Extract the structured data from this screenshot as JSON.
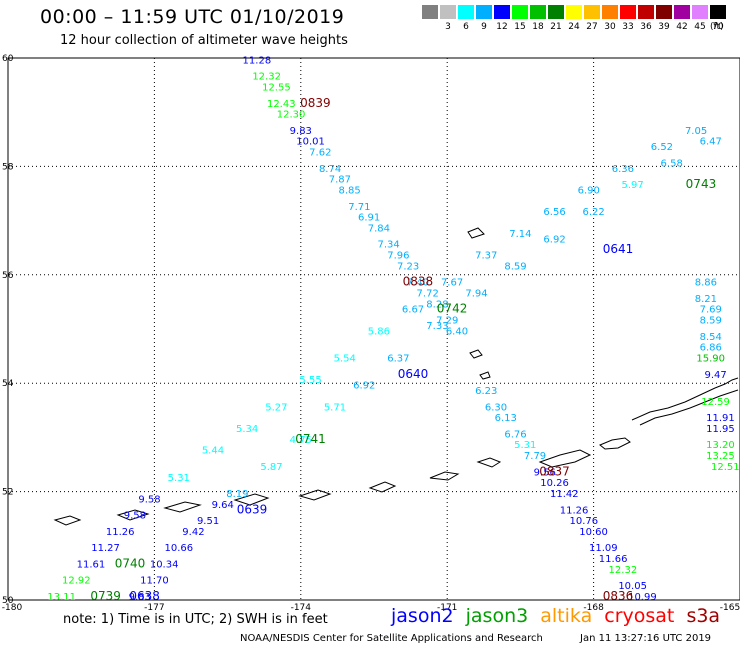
{
  "header": {
    "title": "00:00 – 11:59 UTC 01/10/2019",
    "subtitle": "12 hour collection of altimeter wave heights"
  },
  "color_scale": {
    "swatches": [
      {
        "label": "",
        "color": "#808080"
      },
      {
        "label": "3",
        "color": "#c0c0c0"
      },
      {
        "label": "6",
        "color": "#00ffff"
      },
      {
        "label": "9",
        "color": "#00b0ff"
      },
      {
        "label": "12",
        "color": "#0000ff"
      },
      {
        "label": "15",
        "color": "#00ff00"
      },
      {
        "label": "18",
        "color": "#00c000"
      },
      {
        "label": "21",
        "color": "#008000"
      },
      {
        "label": "24",
        "color": "#ffff00"
      },
      {
        "label": "27",
        "color": "#ffc000"
      },
      {
        "label": "30",
        "color": "#ff8000"
      },
      {
        "label": "33",
        "color": "#ff0000"
      },
      {
        "label": "36",
        "color": "#c00000"
      },
      {
        "label": "39",
        "color": "#800000"
      },
      {
        "label": "42",
        "color": "#a000a0"
      },
      {
        "label": "45",
        "color": "#e080ff"
      },
      {
        "label": "70",
        "color": "#000000"
      }
    ],
    "unit": "(ft)"
  },
  "map": {
    "lon_range": [
      -180,
      -165
    ],
    "lat_range": [
      50,
      60
    ],
    "lon_ticks": [
      "-180",
      "-177",
      "-174",
      "-171",
      "-168",
      "-165"
    ],
    "lat_ticks": [
      "60",
      "58",
      "56",
      "54",
      "52",
      "50"
    ],
    "lon_tick_values": [
      -180,
      -177,
      -174,
      -171,
      -168,
      -165
    ],
    "lat_tick_values": [
      60,
      58,
      56,
      54,
      52,
      50
    ]
  },
  "pass_labels": [
    {
      "text": "0839",
      "lon": -173.7,
      "lat": 59.1,
      "color": "#800000"
    },
    {
      "text": "0838",
      "lon": -171.6,
      "lat": 55.8,
      "color": "#800000"
    },
    {
      "text": "0837",
      "lon": -168.8,
      "lat": 52.3,
      "color": "#800000"
    },
    {
      "text": "0836",
      "lon": -167.5,
      "lat": 50.0,
      "color": "#800000"
    },
    {
      "text": "0743",
      "lon": -165.8,
      "lat": 57.6,
      "color": "#008000"
    },
    {
      "text": "0742",
      "lon": -170.9,
      "lat": 55.3,
      "color": "#008000"
    },
    {
      "text": "0741",
      "lon": -173.8,
      "lat": 52.9,
      "color": "#008000"
    },
    {
      "text": "0740",
      "lon": -177.5,
      "lat": 50.6,
      "color": "#008000"
    },
    {
      "text": "0739",
      "lon": -178.0,
      "lat": 50.0,
      "color": "#008000"
    },
    {
      "text": "0641",
      "lon": -167.5,
      "lat": 56.4,
      "color": "#0000ff"
    },
    {
      "text": "0640",
      "lon": -171.7,
      "lat": 54.1,
      "color": "#0000ff"
    },
    {
      "text": "0639",
      "lon": -175.0,
      "lat": 51.6,
      "color": "#0000ff"
    },
    {
      "text": "0638",
      "lon": -177.2,
      "lat": 50.0,
      "color": "#0000ff"
    }
  ],
  "tracks": [
    {
      "id": "track-0839-0837",
      "points": [
        {
          "v": "11.28",
          "lon": -174.9,
          "lat": 59.9,
          "color": "#0000ff"
        },
        {
          "v": "12.32",
          "lon": -174.7,
          "lat": 59.6,
          "color": "#00ff00"
        },
        {
          "v": "12.55",
          "lon": -174.5,
          "lat": 59.4,
          "color": "#00ff00"
        },
        {
          "v": "12.43",
          "lon": -174.4,
          "lat": 59.1,
          "color": "#00ff00"
        },
        {
          "v": "12.30",
          "lon": -174.2,
          "lat": 58.9,
          "color": "#00ff00"
        },
        {
          "v": "9.83",
          "lon": -174.0,
          "lat": 58.6,
          "color": "#0000ff"
        },
        {
          "v": "10.01",
          "lon": -173.8,
          "lat": 58.4,
          "color": "#0000ff"
        },
        {
          "v": "7.62",
          "lon": -173.6,
          "lat": 58.2,
          "color": "#00b0ff"
        },
        {
          "v": "8.74",
          "lon": -173.4,
          "lat": 57.9,
          "color": "#00b0ff"
        },
        {
          "v": "7.87",
          "lon": -173.2,
          "lat": 57.7,
          "color": "#00b0ff"
        },
        {
          "v": "8.85",
          "lon": -173.0,
          "lat": 57.5,
          "color": "#00b0ff"
        },
        {
          "v": "7.71",
          "lon": -172.8,
          "lat": 57.2,
          "color": "#00b0ff"
        },
        {
          "v": "6.91",
          "lon": -172.6,
          "lat": 57.0,
          "color": "#00b0ff"
        },
        {
          "v": "7.84",
          "lon": -172.4,
          "lat": 56.8,
          "color": "#00b0ff"
        },
        {
          "v": "7.34",
          "lon": -172.2,
          "lat": 56.5,
          "color": "#00b0ff"
        },
        {
          "v": "7.96",
          "lon": -172.0,
          "lat": 56.3,
          "color": "#00b0ff"
        },
        {
          "v": "7.23",
          "lon": -171.8,
          "lat": 56.1,
          "color": "#00b0ff"
        },
        {
          "v": "7.40",
          "lon": -171.6,
          "lat": 55.8,
          "color": "#00b0ff"
        },
        {
          "v": "7.72",
          "lon": -171.4,
          "lat": 55.6,
          "color": "#00b0ff"
        },
        {
          "v": "8.28",
          "lon": -171.2,
          "lat": 55.4,
          "color": "#00b0ff"
        },
        {
          "v": "7.29",
          "lon": -171.0,
          "lat": 55.1,
          "color": "#00b0ff"
        },
        {
          "v": "6.40",
          "lon": -170.8,
          "lat": 54.9,
          "color": "#00b0ff"
        },
        {
          "v": "6.23",
          "lon": -170.2,
          "lat": 53.8,
          "color": "#00b0ff"
        },
        {
          "v": "6.30",
          "lon": -170.0,
          "lat": 53.5,
          "color": "#00b0ff"
        },
        {
          "v": "6.13",
          "lon": -169.8,
          "lat": 53.3,
          "color": "#00b0ff"
        },
        {
          "v": "6.76",
          "lon": -169.6,
          "lat": 53.0,
          "color": "#00b0ff"
        },
        {
          "v": "5.31",
          "lon": -169.4,
          "lat": 52.8,
          "color": "#00ffff"
        },
        {
          "v": "7.79",
          "lon": -169.2,
          "lat": 52.6,
          "color": "#00b0ff"
        },
        {
          "v": "9.56",
          "lon": -169.0,
          "lat": 52.3,
          "color": "#0000ff"
        },
        {
          "v": "10.26",
          "lon": -168.8,
          "lat": 52.1,
          "color": "#0000ff"
        },
        {
          "v": "11.42",
          "lon": -168.6,
          "lat": 51.9,
          "color": "#0000ff"
        },
        {
          "v": "11.26",
          "lon": -168.4,
          "lat": 51.6,
          "color": "#0000ff"
        },
        {
          "v": "10.76",
          "lon": -168.2,
          "lat": 51.4,
          "color": "#0000ff"
        },
        {
          "v": "10.60",
          "lon": -168.0,
          "lat": 51.2,
          "color": "#0000ff"
        },
        {
          "v": "11.09",
          "lon": -167.8,
          "lat": 50.9,
          "color": "#0000ff"
        },
        {
          "v": "11.66",
          "lon": -167.6,
          "lat": 50.7,
          "color": "#0000ff"
        },
        {
          "v": "12.32",
          "lon": -167.4,
          "lat": 50.5,
          "color": "#00ff00"
        },
        {
          "v": "10.05",
          "lon": -167.2,
          "lat": 50.2,
          "color": "#0000ff"
        },
        {
          "v": "10.99",
          "lon": -167.0,
          "lat": 50.0,
          "color": "#0000ff"
        }
      ]
    },
    {
      "id": "track-0743-0739",
      "points": [
        {
          "v": "13.11",
          "lon": -178.9,
          "lat": 50.0,
          "color": "#00ff00"
        },
        {
          "v": "12.92",
          "lon": -178.6,
          "lat": 50.3,
          "color": "#00ff00"
        },
        {
          "v": "11.61",
          "lon": -178.3,
          "lat": 50.6,
          "color": "#0000ff"
        },
        {
          "v": "11.27",
          "lon": -178.0,
          "lat": 50.9,
          "color": "#0000ff"
        },
        {
          "v": "11.26",
          "lon": -177.7,
          "lat": 51.2,
          "color": "#0000ff"
        },
        {
          "v": "9.58",
          "lon": -177.4,
          "lat": 51.5,
          "color": "#0000ff"
        },
        {
          "v": "9.58",
          "lon": -177.1,
          "lat": 51.8,
          "color": "#0000ff"
        },
        {
          "v": "5.31",
          "lon": -176.5,
          "lat": 52.2,
          "color": "#00ffff"
        },
        {
          "v": "5.44",
          "lon": -175.8,
          "lat": 52.7,
          "color": "#00ffff"
        },
        {
          "v": "5.34",
          "lon": -175.1,
          "lat": 53.1,
          "color": "#00ffff"
        },
        {
          "v": "5.27",
          "lon": -174.5,
          "lat": 53.5,
          "color": "#00ffff"
        },
        {
          "v": "5.55",
          "lon": -173.8,
          "lat": 54.0,
          "color": "#00ffff"
        },
        {
          "v": "5.54",
          "lon": -173.1,
          "lat": 54.4,
          "color": "#00ffff"
        },
        {
          "v": "5.86",
          "lon": -172.4,
          "lat": 54.9,
          "color": "#00ffff"
        },
        {
          "v": "6.67",
          "lon": -171.7,
          "lat": 55.3,
          "color": "#00b0ff"
        },
        {
          "v": "7.67",
          "lon": -170.9,
          "lat": 55.8,
          "color": "#00b0ff"
        },
        {
          "v": "7.37",
          "lon": -170.2,
          "lat": 56.3,
          "color": "#00b0ff"
        },
        {
          "v": "7.14",
          "lon": -169.5,
          "lat": 56.7,
          "color": "#00b0ff"
        },
        {
          "v": "6.56",
          "lon": -168.8,
          "lat": 57.1,
          "color": "#00b0ff"
        },
        {
          "v": "6.90",
          "lon": -168.1,
          "lat": 57.5,
          "color": "#00b0ff"
        },
        {
          "v": "6.36",
          "lon": -167.4,
          "lat": 57.9,
          "color": "#00b0ff"
        },
        {
          "v": "6.52",
          "lon": -166.6,
          "lat": 58.3,
          "color": "#00b0ff"
        },
        {
          "v": "7.05",
          "lon": -165.9,
          "lat": 58.6,
          "color": "#00b0ff"
        }
      ]
    },
    {
      "id": "track-0641-0638",
      "points": [
        {
          "v": "9.83",
          "lon": -177.3,
          "lat": 50.0,
          "color": "#0000ff"
        },
        {
          "v": "11.70",
          "lon": -177.0,
          "lat": 50.3,
          "color": "#0000ff"
        },
        {
          "v": "10.34",
          "lon": -176.8,
          "lat": 50.6,
          "color": "#0000ff"
        },
        {
          "v": "10.66",
          "lon": -176.5,
          "lat": 50.9,
          "color": "#0000ff"
        },
        {
          "v": "9.42",
          "lon": -176.2,
          "lat": 51.2,
          "color": "#0000ff"
        },
        {
          "v": "9.51",
          "lon": -175.9,
          "lat": 51.4,
          "color": "#0000ff"
        },
        {
          "v": "9.64",
          "lon": -175.6,
          "lat": 51.7,
          "color": "#0000ff"
        },
        {
          "v": "8.19",
          "lon": -175.3,
          "lat": 51.9,
          "color": "#00b0ff"
        },
        {
          "v": "5.87",
          "lon": -174.6,
          "lat": 52.4,
          "color": "#00ffff"
        },
        {
          "v": "4.75",
          "lon": -174.0,
          "lat": 52.9,
          "color": "#00ffff"
        },
        {
          "v": "5.71",
          "lon": -173.3,
          "lat": 53.5,
          "color": "#00ffff"
        },
        {
          "v": "6.92",
          "lon": -172.7,
          "lat": 53.9,
          "color": "#00b0ff"
        },
        {
          "v": "6.37",
          "lon": -172.0,
          "lat": 54.4,
          "color": "#00b0ff"
        },
        {
          "v": "7.33",
          "lon": -171.2,
          "lat": 55.0,
          "color": "#00b0ff"
        },
        {
          "v": "7.94",
          "lon": -170.4,
          "lat": 55.6,
          "color": "#00b0ff"
        },
        {
          "v": "8.59",
          "lon": -169.6,
          "lat": 56.1,
          "color": "#00b0ff"
        },
        {
          "v": "6.92",
          "lon": -168.8,
          "lat": 56.6,
          "color": "#00b0ff"
        },
        {
          "v": "6.22",
          "lon": -168.0,
          "lat": 57.1,
          "color": "#00b0ff"
        },
        {
          "v": "5.97",
          "lon": -167.2,
          "lat": 57.6,
          "color": "#00ffff"
        },
        {
          "v": "6.58",
          "lon": -166.4,
          "lat": 58.0,
          "color": "#00b0ff"
        },
        {
          "v": "6.47",
          "lon": -165.6,
          "lat": 58.4,
          "color": "#00b0ff"
        }
      ]
    },
    {
      "id": "track-east-edge",
      "points": [
        {
          "v": "8.86",
          "lon": -165.7,
          "lat": 55.8,
          "color": "#00b0ff"
        },
        {
          "v": "8.21",
          "lon": -165.7,
          "lat": 55.5,
          "color": "#00b0ff"
        },
        {
          "v": "7.69",
          "lon": -165.6,
          "lat": 55.3,
          "color": "#00b0ff"
        },
        {
          "v": "8.59",
          "lon": -165.6,
          "lat": 55.1,
          "color": "#00b0ff"
        },
        {
          "v": "8.54",
          "lon": -165.6,
          "lat": 54.8,
          "color": "#00b0ff"
        },
        {
          "v": "6.86",
          "lon": -165.6,
          "lat": 54.6,
          "color": "#00b0ff"
        },
        {
          "v": "15.90",
          "lon": -165.6,
          "lat": 54.4,
          "color": "#00c000"
        },
        {
          "v": "9.47",
          "lon": -165.5,
          "lat": 54.1,
          "color": "#0000ff"
        },
        {
          "v": "12.59",
          "lon": -165.5,
          "lat": 53.6,
          "color": "#00ff00"
        },
        {
          "v": "11.91",
          "lon": -165.4,
          "lat": 53.3,
          "color": "#0000ff"
        },
        {
          "v": "11.95",
          "lon": -165.4,
          "lat": 53.1,
          "color": "#0000ff"
        },
        {
          "v": "13.20",
          "lon": -165.4,
          "lat": 52.8,
          "color": "#00ff00"
        },
        {
          "v": "13.25",
          "lon": -165.4,
          "lat": 52.6,
          "color": "#00ff00"
        },
        {
          "v": "12.51",
          "lon": -165.3,
          "lat": 52.4,
          "color": "#00ff00"
        }
      ]
    }
  ],
  "footer": {
    "note": "note: 1) Time is in UTC; 2) SWH is in feet",
    "satellites": [
      {
        "name": "jason2",
        "color": "#0000ff"
      },
      {
        "name": "jason3",
        "color": "#00a000"
      },
      {
        "name": "altika",
        "color": "#ff9900"
      },
      {
        "name": "cryosat",
        "color": "#ff0000"
      },
      {
        "name": "s3a",
        "color": "#a00000"
      }
    ],
    "credit": "NOAA/NESDIS Center for Satellite Applications and Research",
    "timestamp": "Jan 11 13:27:16 UTC 2019"
  }
}
